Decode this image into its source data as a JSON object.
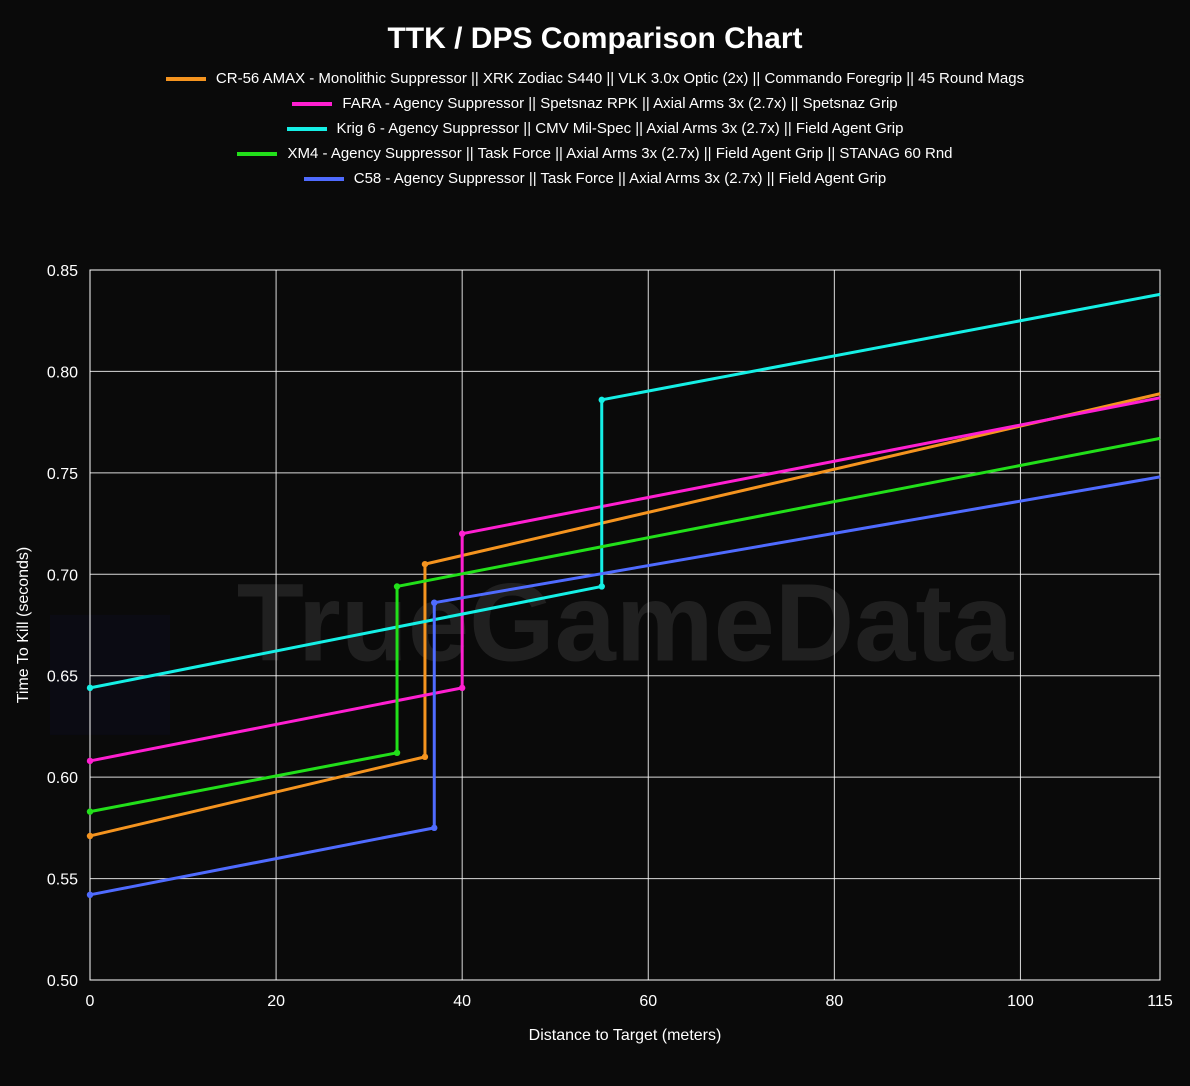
{
  "title": "TTK / DPS Comparison Chart",
  "chart": {
    "type": "line",
    "background_color": "#0a0a0a",
    "grid_color": "#ffffff",
    "watermark": "TrueGameData",
    "watermark_color": "#2a2a2a",
    "xlabel": "Distance to Target (meters)",
    "ylabel": "Time To Kill (seconds)",
    "label_fontsize": 16,
    "tick_fontsize": 16,
    "title_fontsize": 30,
    "xlim": [
      0,
      115
    ],
    "ylim": [
      0.5,
      0.85
    ],
    "xticks": [
      0,
      20,
      40,
      60,
      80,
      100,
      115
    ],
    "yticks": [
      0.5,
      0.55,
      0.6,
      0.65,
      0.7,
      0.75,
      0.8,
      0.85
    ],
    "line_width": 3,
    "marker_radius": 3.2,
    "series": [
      {
        "name": "CR-56 AMAX - Monolithic Suppressor || XRK Zodiac S440 || VLK 3.0x Optic (2x) || Commando Foregrip || 45 Round Mags",
        "color": "#f5941f",
        "points": [
          {
            "x": 0,
            "y": 0.571,
            "marker": true
          },
          {
            "x": 36,
            "y": 0.61,
            "marker": true
          },
          {
            "x": 36,
            "y": 0.705,
            "marker": true
          },
          {
            "x": 115,
            "y": 0.789,
            "marker": false
          }
        ]
      },
      {
        "name": "FARA - Agency Suppressor || Spetsnaz RPK || Axial Arms 3x (2.7x) || Spetsnaz Grip",
        "color": "#ff1fd1",
        "points": [
          {
            "x": 0,
            "y": 0.608,
            "marker": true
          },
          {
            "x": 40,
            "y": 0.644,
            "marker": true
          },
          {
            "x": 40,
            "y": 0.72,
            "marker": true
          },
          {
            "x": 115,
            "y": 0.787,
            "marker": false
          }
        ]
      },
      {
        "name": "Krig 6 - Agency Suppressor || CMV Mil-Spec || Axial Arms 3x (2.7x) || Field Agent Grip",
        "color": "#15f0e6",
        "points": [
          {
            "x": 0,
            "y": 0.644,
            "marker": true
          },
          {
            "x": 55,
            "y": 0.694,
            "marker": true
          },
          {
            "x": 55,
            "y": 0.786,
            "marker": true
          },
          {
            "x": 115,
            "y": 0.838,
            "marker": false
          }
        ]
      },
      {
        "name": "XM4 - Agency Suppressor || Task Force || Axial Arms 3x (2.7x) || Field Agent Grip || STANAG 60 Rnd",
        "color": "#22e01a",
        "points": [
          {
            "x": 0,
            "y": 0.583,
            "marker": true
          },
          {
            "x": 33,
            "y": 0.612,
            "marker": true
          },
          {
            "x": 33,
            "y": 0.694,
            "marker": true
          },
          {
            "x": 115,
            "y": 0.767,
            "marker": false
          }
        ]
      },
      {
        "name": "C58 - Agency Suppressor || Task Force || Axial Arms 3x (2.7x) || Field Agent Grip",
        "color": "#4f6bff",
        "points": [
          {
            "x": 0,
            "y": 0.542,
            "marker": true
          },
          {
            "x": 37,
            "y": 0.575,
            "marker": true
          },
          {
            "x": 37,
            "y": 0.686,
            "marker": true
          },
          {
            "x": 115,
            "y": 0.748,
            "marker": false
          }
        ]
      }
    ]
  }
}
